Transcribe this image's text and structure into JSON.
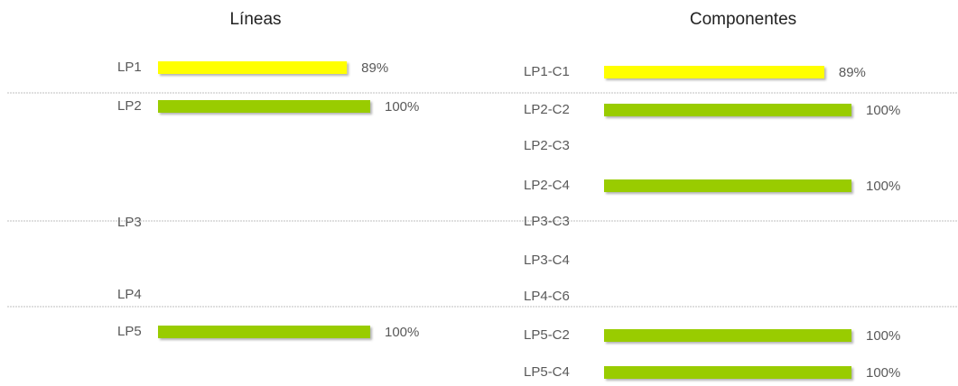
{
  "chart_data": [
    {
      "type": "hbar",
      "title": "Líneas",
      "categories": [
        "LP1",
        "LP2",
        "LP3",
        "LP4",
        "LP5"
      ],
      "values": [
        89,
        100,
        null,
        null,
        100
      ],
      "value_labels": [
        "89%",
        "100%",
        null,
        null,
        "100%"
      ],
      "colors": [
        "#ffff00",
        "#99cc00",
        null,
        null,
        "#99cc00"
      ]
    },
    {
      "type": "hbar",
      "title": "Componentes",
      "categories": [
        "LP1-C1",
        "LP2-C2",
        "LP2-C3",
        "LP2-C4",
        "LP3-C3",
        "LP3-C4",
        "LP4-C6",
        "LP5-C2",
        "LP5-C4"
      ],
      "values": [
        89,
        100,
        null,
        100,
        null,
        null,
        null,
        100,
        100
      ],
      "value_labels": [
        "89%",
        "100%",
        null,
        "100%",
        null,
        null,
        null,
        "100%",
        "100%"
      ],
      "colors": [
        "#ffff00",
        "#99cc00",
        null,
        "#99cc00",
        null,
        null,
        null,
        "#99cc00",
        "#99cc00"
      ]
    }
  ]
}
